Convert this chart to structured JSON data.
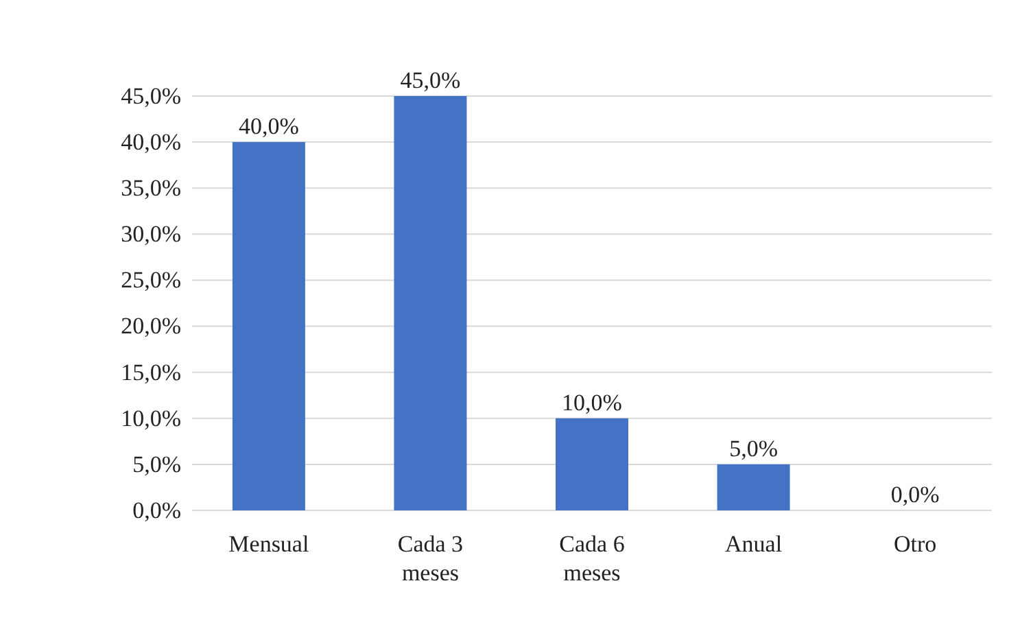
{
  "chart_data": {
    "type": "bar",
    "categories": [
      "Mensual",
      "Cada 3 meses",
      "Cada 6 meses",
      "Anual",
      "Otro"
    ],
    "values": [
      40,
      45,
      10,
      5,
      0
    ],
    "value_labels": [
      "40,0%",
      "45,0%",
      "10,0%",
      "5,0%",
      "0,0%"
    ],
    "color": "#4472c4",
    "ylim": [
      0,
      45
    ],
    "yticks": [
      {
        "value": 0,
        "label": "0,0%"
      },
      {
        "value": 5,
        "label": "5,0%"
      },
      {
        "value": 10,
        "label": "10,0%"
      },
      {
        "value": 15,
        "label": "15,0%"
      },
      {
        "value": 20,
        "label": "20,0%"
      },
      {
        "value": 25,
        "label": "25,0%"
      },
      {
        "value": 30,
        "label": "30,0%"
      },
      {
        "value": 35,
        "label": "35,0%"
      },
      {
        "value": 40,
        "label": "40,0%"
      },
      {
        "value": 45,
        "label": "45,0%"
      }
    ],
    "grid": true
  }
}
